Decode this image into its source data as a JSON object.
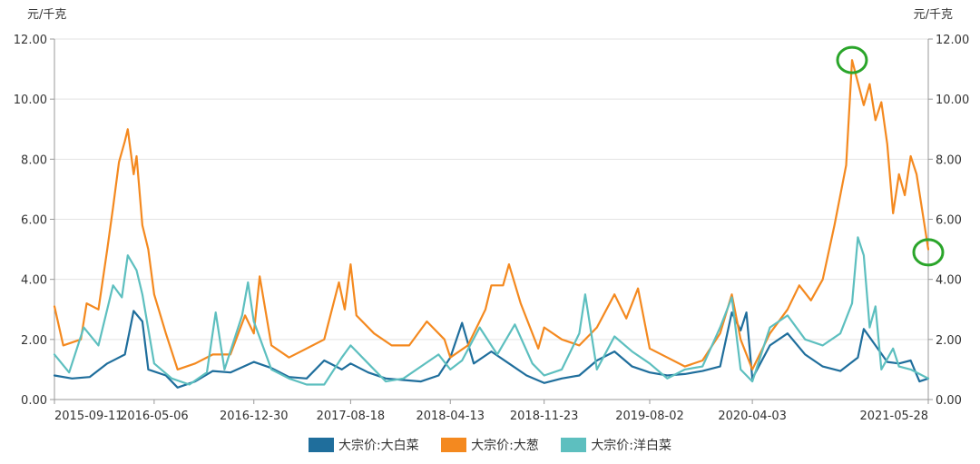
{
  "chart_data": {
    "type": "line",
    "unit_left": "元/千克",
    "unit_right": "元/千克",
    "x_ticks": [
      "2015-09-11",
      "2016-05-06",
      "2016-12-30",
      "2017-08-18",
      "2018-04-13",
      "2018-11-23",
      "2019-08-02",
      "2020-04-03",
      "2021-05-28"
    ],
    "y_ticks": [
      "0.00",
      "2.00",
      "4.00",
      "6.00",
      "8.00",
      "10.00",
      "12.00"
    ],
    "ylim": [
      0,
      12
    ],
    "grid": true,
    "legend_position": "bottom",
    "series": [
      {
        "name": "大宗价:大白菜",
        "color": "#1f6e9c",
        "points": [
          [
            "2015-09-11",
            0.8
          ],
          [
            "2015-10-23",
            0.7
          ],
          [
            "2015-12-04",
            0.75
          ],
          [
            "2016-01-15",
            1.2
          ],
          [
            "2016-02-26",
            1.5
          ],
          [
            "2016-03-18",
            2.95
          ],
          [
            "2016-04-08",
            2.6
          ],
          [
            "2016-04-22",
            1.0
          ],
          [
            "2016-06-03",
            0.8
          ],
          [
            "2016-07-01",
            0.4
          ],
          [
            "2016-08-12",
            0.6
          ],
          [
            "2016-09-23",
            0.95
          ],
          [
            "2016-11-04",
            0.9
          ],
          [
            "2016-12-30",
            1.25
          ],
          [
            "2017-02-10",
            1.05
          ],
          [
            "2017-03-24",
            0.75
          ],
          [
            "2017-05-05",
            0.7
          ],
          [
            "2017-06-16",
            1.3
          ],
          [
            "2017-07-28",
            1.0
          ],
          [
            "2017-08-18",
            1.2
          ],
          [
            "2017-09-29",
            0.9
          ],
          [
            "2017-11-10",
            0.7
          ],
          [
            "2017-12-22",
            0.65
          ],
          [
            "2018-02-02",
            0.6
          ],
          [
            "2018-03-16",
            0.8
          ],
          [
            "2018-04-13",
            1.4
          ],
          [
            "2018-05-11",
            2.55
          ],
          [
            "2018-06-08",
            1.2
          ],
          [
            "2018-07-20",
            1.6
          ],
          [
            "2018-08-31",
            1.2
          ],
          [
            "2018-10-12",
            0.8
          ],
          [
            "2018-11-23",
            0.55
          ],
          [
            "2019-01-04",
            0.7
          ],
          [
            "2019-02-15",
            0.8
          ],
          [
            "2019-03-29",
            1.3
          ],
          [
            "2019-05-10",
            1.6
          ],
          [
            "2019-06-21",
            1.1
          ],
          [
            "2019-08-02",
            0.9
          ],
          [
            "2019-09-13",
            0.8
          ],
          [
            "2019-10-25",
            0.85
          ],
          [
            "2019-12-06",
            0.95
          ],
          [
            "2020-01-17",
            1.1
          ],
          [
            "2020-02-14",
            2.9
          ],
          [
            "2020-03-06",
            2.3
          ],
          [
            "2020-03-20",
            2.9
          ],
          [
            "2020-04-03",
            0.7
          ],
          [
            "2020-05-15",
            1.8
          ],
          [
            "2020-06-26",
            2.2
          ],
          [
            "2020-08-07",
            1.5
          ],
          [
            "2020-09-18",
            1.1
          ],
          [
            "2020-10-30",
            0.95
          ],
          [
            "2020-12-11",
            1.4
          ],
          [
            "2020-12-25",
            2.35
          ],
          [
            "2021-01-22",
            1.8
          ],
          [
            "2021-02-19",
            1.25
          ],
          [
            "2021-03-19",
            1.2
          ],
          [
            "2021-04-16",
            1.3
          ],
          [
            "2021-05-07",
            0.6
          ],
          [
            "2021-05-28",
            0.7
          ]
        ]
      },
      {
        "name": "大宗价:大葱",
        "color": "#f4891f",
        "points": [
          [
            "2015-09-11",
            3.1
          ],
          [
            "2015-10-02",
            1.8
          ],
          [
            "2015-11-13",
            2.0
          ],
          [
            "2015-11-27",
            3.2
          ],
          [
            "2015-12-25",
            3.0
          ],
          [
            "2016-01-15",
            5.0
          ],
          [
            "2016-01-29",
            6.4
          ],
          [
            "2016-02-12",
            7.9
          ],
          [
            "2016-02-26",
            8.6
          ],
          [
            "2016-03-04",
            9.0
          ],
          [
            "2016-03-18",
            7.5
          ],
          [
            "2016-03-25",
            8.1
          ],
          [
            "2016-04-08",
            5.8
          ],
          [
            "2016-04-22",
            5.0
          ],
          [
            "2016-05-06",
            3.5
          ],
          [
            "2016-06-03",
            2.2
          ],
          [
            "2016-07-01",
            1.0
          ],
          [
            "2016-08-12",
            1.2
          ],
          [
            "2016-09-23",
            1.5
          ],
          [
            "2016-11-04",
            1.5
          ],
          [
            "2016-12-09",
            2.8
          ],
          [
            "2016-12-30",
            2.2
          ],
          [
            "2017-01-13",
            4.1
          ],
          [
            "2017-02-10",
            1.8
          ],
          [
            "2017-03-24",
            1.4
          ],
          [
            "2017-05-05",
            1.7
          ],
          [
            "2017-06-16",
            2.0
          ],
          [
            "2017-07-21",
            3.9
          ],
          [
            "2017-08-04",
            3.0
          ],
          [
            "2017-08-18",
            4.5
          ],
          [
            "2017-09-01",
            2.8
          ],
          [
            "2017-10-13",
            2.2
          ],
          [
            "2017-11-24",
            1.8
          ],
          [
            "2018-01-05",
            1.8
          ],
          [
            "2018-02-16",
            2.6
          ],
          [
            "2018-03-30",
            2.0
          ],
          [
            "2018-04-13",
            1.4
          ],
          [
            "2018-05-25",
            1.8
          ],
          [
            "2018-07-06",
            3.0
          ],
          [
            "2018-07-20",
            3.8
          ],
          [
            "2018-08-17",
            3.8
          ],
          [
            "2018-08-31",
            4.5
          ],
          [
            "2018-09-28",
            3.2
          ],
          [
            "2018-11-09",
            1.7
          ],
          [
            "2018-11-23",
            2.4
          ],
          [
            "2019-01-04",
            2.0
          ],
          [
            "2019-02-15",
            1.8
          ],
          [
            "2019-03-29",
            2.4
          ],
          [
            "2019-05-10",
            3.5
          ],
          [
            "2019-06-07",
            2.7
          ],
          [
            "2019-07-05",
            3.7
          ],
          [
            "2019-08-02",
            1.7
          ],
          [
            "2019-09-13",
            1.4
          ],
          [
            "2019-10-25",
            1.1
          ],
          [
            "2019-12-06",
            1.3
          ],
          [
            "2020-01-17",
            2.2
          ],
          [
            "2020-02-14",
            3.5
          ],
          [
            "2020-03-06",
            2.0
          ],
          [
            "2020-04-03",
            1.0
          ],
          [
            "2020-05-15",
            2.2
          ],
          [
            "2020-06-26",
            3.0
          ],
          [
            "2020-07-24",
            3.8
          ],
          [
            "2020-08-21",
            3.3
          ],
          [
            "2020-09-18",
            4.0
          ],
          [
            "2020-10-16",
            5.8
          ],
          [
            "2020-11-13",
            7.8
          ],
          [
            "2020-11-27",
            11.3
          ],
          [
            "2020-12-25",
            9.8
          ],
          [
            "2021-01-08",
            10.5
          ],
          [
            "2021-01-22",
            9.3
          ],
          [
            "2021-02-05",
            9.9
          ],
          [
            "2021-02-19",
            8.5
          ],
          [
            "2021-03-05",
            6.2
          ],
          [
            "2021-03-19",
            7.5
          ],
          [
            "2021-04-02",
            6.8
          ],
          [
            "2021-04-16",
            8.1
          ],
          [
            "2021-04-30",
            7.5
          ],
          [
            "2021-05-28",
            5.0
          ]
        ]
      },
      {
        "name": "大宗价:洋白菜",
        "color": "#5dbfbf",
        "points": [
          [
            "2015-09-11",
            1.5
          ],
          [
            "2015-10-16",
            0.9
          ],
          [
            "2015-11-20",
            2.4
          ],
          [
            "2015-12-25",
            1.8
          ],
          [
            "2016-01-29",
            3.8
          ],
          [
            "2016-02-19",
            3.4
          ],
          [
            "2016-03-04",
            4.8
          ],
          [
            "2016-03-25",
            4.3
          ],
          [
            "2016-04-08",
            3.5
          ],
          [
            "2016-05-06",
            1.2
          ],
          [
            "2016-06-17",
            0.7
          ],
          [
            "2016-07-29",
            0.5
          ],
          [
            "2016-09-09",
            0.9
          ],
          [
            "2016-09-30",
            2.9
          ],
          [
            "2016-10-21",
            1.0
          ],
          [
            "2016-12-02",
            2.8
          ],
          [
            "2016-12-16",
            3.9
          ],
          [
            "2016-12-30",
            2.6
          ],
          [
            "2017-02-10",
            1.0
          ],
          [
            "2017-03-24",
            0.7
          ],
          [
            "2017-05-05",
            0.5
          ],
          [
            "2017-06-16",
            0.5
          ],
          [
            "2017-07-28",
            1.4
          ],
          [
            "2017-08-18",
            1.8
          ],
          [
            "2017-09-29",
            1.2
          ],
          [
            "2017-11-10",
            0.6
          ],
          [
            "2017-12-22",
            0.7
          ],
          [
            "2018-02-02",
            1.1
          ],
          [
            "2018-03-16",
            1.5
          ],
          [
            "2018-04-13",
            1.0
          ],
          [
            "2018-05-11",
            1.3
          ],
          [
            "2018-06-22",
            2.4
          ],
          [
            "2018-08-03",
            1.5
          ],
          [
            "2018-09-14",
            2.5
          ],
          [
            "2018-10-26",
            1.2
          ],
          [
            "2018-11-23",
            0.8
          ],
          [
            "2019-01-04",
            1.0
          ],
          [
            "2019-02-15",
            2.2
          ],
          [
            "2019-03-01",
            3.5
          ],
          [
            "2019-03-29",
            1.0
          ],
          [
            "2019-05-10",
            2.1
          ],
          [
            "2019-06-21",
            1.6
          ],
          [
            "2019-08-02",
            1.2
          ],
          [
            "2019-09-13",
            0.7
          ],
          [
            "2019-10-25",
            1.0
          ],
          [
            "2019-12-06",
            1.1
          ],
          [
            "2020-01-17",
            2.4
          ],
          [
            "2020-02-14",
            3.4
          ],
          [
            "2020-03-06",
            1.0
          ],
          [
            "2020-04-03",
            0.6
          ],
          [
            "2020-05-15",
            2.4
          ],
          [
            "2020-06-26",
            2.8
          ],
          [
            "2020-08-07",
            2.0
          ],
          [
            "2020-09-18",
            1.8
          ],
          [
            "2020-10-30",
            2.2
          ],
          [
            "2020-11-27",
            3.2
          ],
          [
            "2020-12-11",
            5.4
          ],
          [
            "2020-12-25",
            4.8
          ],
          [
            "2021-01-08",
            2.4
          ],
          [
            "2021-01-22",
            3.1
          ],
          [
            "2021-02-05",
            1.0
          ],
          [
            "2021-03-05",
            1.7
          ],
          [
            "2021-03-19",
            1.1
          ],
          [
            "2021-04-16",
            1.0
          ],
          [
            "2021-05-28",
            0.7
          ]
        ]
      }
    ],
    "annotations": [
      {
        "type": "circle",
        "series": "大宗价:大葱",
        "x": "2020-11-27",
        "y": 11.3,
        "color": "#2aa52a"
      },
      {
        "type": "circle",
        "series": "大宗价:大葱",
        "x": "2021-05-28",
        "y": 4.9,
        "color": "#2aa52a"
      }
    ]
  }
}
